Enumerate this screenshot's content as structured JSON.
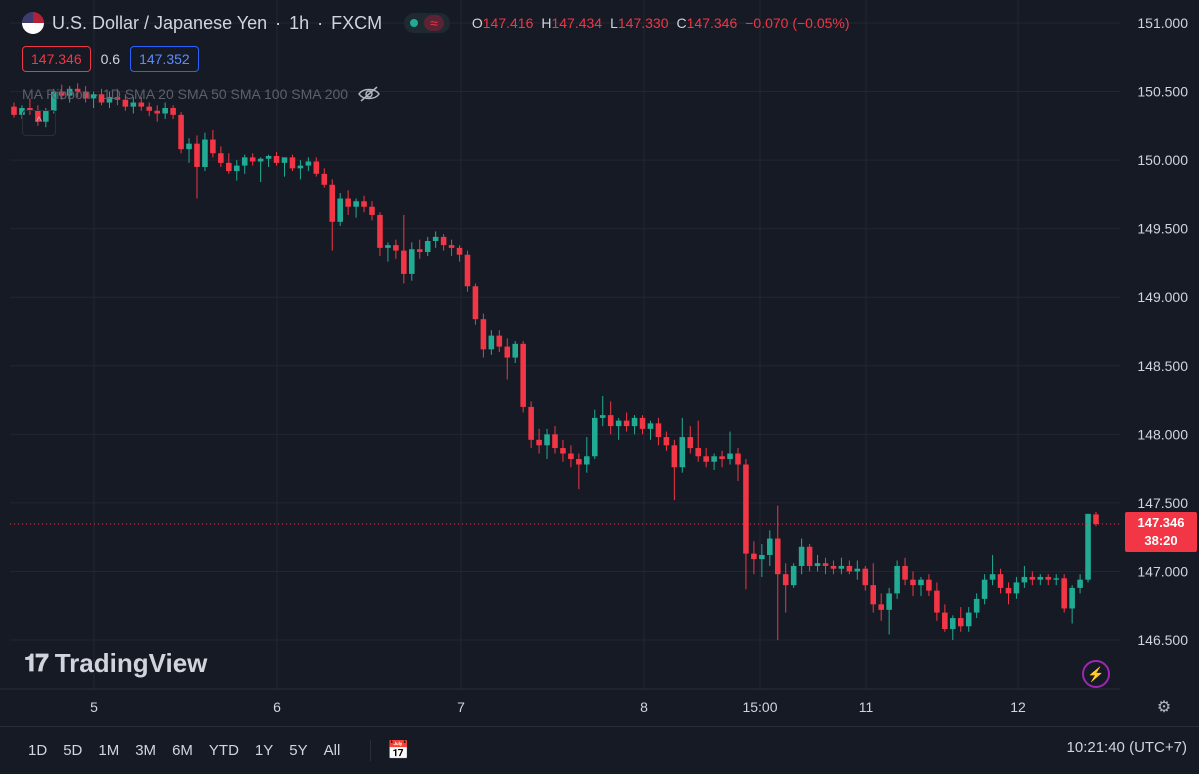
{
  "header": {
    "symbol": "U.S. Dollar / Japanese Yen",
    "sep1": "·",
    "interval": "1h",
    "sep2": "·",
    "source": "FXCM",
    "o_label": "O",
    "o": "147.416",
    "h_label": "H",
    "h": "147.434",
    "l_label": "L",
    "l": "147.330",
    "c_label": "C",
    "c": "147.346",
    "change": "−0.070 (−0.05%)"
  },
  "quote": {
    "bid": "147.346",
    "spread": "0.6",
    "ask": "147.352"
  },
  "indicator": {
    "label": "MA Ribbon · 1D SMA 20 SMA 50 SMA 100 SMA 200"
  },
  "price_axis": [
    "151.000",
    "150.500",
    "150.000",
    "149.500",
    "149.000",
    "148.500",
    "148.000",
    "147.500",
    "147.000",
    "146.500"
  ],
  "time_axis": [
    "5",
    "6",
    "7",
    "8",
    "15:00",
    "11",
    "12"
  ],
  "last_price": {
    "price": "147.346",
    "countdown": "38:20"
  },
  "brand": "TradingView",
  "range_buttons": [
    "1D",
    "5D",
    "1M",
    "3M",
    "6M",
    "YTD",
    "1Y",
    "5Y",
    "All"
  ],
  "clock": "10:21:40 (UTC+7)",
  "icons": {
    "flag": "us-jp-flag-icon",
    "eye": "eye-off-icon",
    "bolt": "lightning-icon",
    "gear": "settings-icon",
    "calendar": "calendar-range-icon"
  },
  "colors": {
    "up": "#22ab94",
    "down": "#f23645",
    "bg": "#161a25",
    "grid": "#232632"
  },
  "chart_data": {
    "type": "candlestick",
    "ylim": [
      146.3,
      151.1
    ],
    "yticks": [
      151.0,
      150.5,
      150.0,
      149.5,
      149.0,
      148.5,
      148.0,
      147.5,
      147.0,
      146.5
    ],
    "last_price": 147.346,
    "candles": [
      [
        150.39,
        150.42,
        150.31,
        150.33
      ],
      [
        150.33,
        150.4,
        150.3,
        150.38
      ],
      [
        150.38,
        150.45,
        150.33,
        150.36
      ],
      [
        150.36,
        150.4,
        150.25,
        150.28
      ],
      [
        150.28,
        150.38,
        150.24,
        150.36
      ],
      [
        150.36,
        150.52,
        150.34,
        150.5
      ],
      [
        150.5,
        150.55,
        150.44,
        150.47
      ],
      [
        150.47,
        150.54,
        150.42,
        150.52
      ],
      [
        150.52,
        150.56,
        150.46,
        150.5
      ],
      [
        150.5,
        150.54,
        150.42,
        150.45
      ],
      [
        150.45,
        150.5,
        150.38,
        150.48
      ],
      [
        150.48,
        150.52,
        150.4,
        150.42
      ],
      [
        150.42,
        150.5,
        150.38,
        150.46
      ],
      [
        150.46,
        150.52,
        150.4,
        150.44
      ],
      [
        150.44,
        150.48,
        150.36,
        150.39
      ],
      [
        150.39,
        150.46,
        150.34,
        150.42
      ],
      [
        150.42,
        150.46,
        150.36,
        150.39
      ],
      [
        150.39,
        150.42,
        150.32,
        150.36
      ],
      [
        150.36,
        150.4,
        150.28,
        150.34
      ],
      [
        150.34,
        150.42,
        150.3,
        150.38
      ],
      [
        150.38,
        150.4,
        150.3,
        150.33
      ],
      [
        150.33,
        150.35,
        150.05,
        150.08
      ],
      [
        150.08,
        150.16,
        149.98,
        150.12
      ],
      [
        150.12,
        150.18,
        149.72,
        149.95
      ],
      [
        149.95,
        150.2,
        149.92,
        150.15
      ],
      [
        150.15,
        150.22,
        150.02,
        150.05
      ],
      [
        150.05,
        150.1,
        149.95,
        149.98
      ],
      [
        149.98,
        150.05,
        149.9,
        149.92
      ],
      [
        149.92,
        150.0,
        149.85,
        149.96
      ],
      [
        149.96,
        150.04,
        149.9,
        150.02
      ],
      [
        150.02,
        150.05,
        149.96,
        149.99
      ],
      [
        149.99,
        150.02,
        149.84,
        150.01
      ],
      [
        150.01,
        150.04,
        149.95,
        150.03
      ],
      [
        150.03,
        150.06,
        149.96,
        149.98
      ],
      [
        149.98,
        150.02,
        149.88,
        150.02
      ],
      [
        150.02,
        150.04,
        149.92,
        149.94
      ],
      [
        149.94,
        150.0,
        149.86,
        149.96
      ],
      [
        149.96,
        150.02,
        149.92,
        149.99
      ],
      [
        149.99,
        150.02,
        149.88,
        149.9
      ],
      [
        149.9,
        149.94,
        149.8,
        149.82
      ],
      [
        149.82,
        149.86,
        149.34,
        149.55
      ],
      [
        149.55,
        149.76,
        149.52,
        149.72
      ],
      [
        149.72,
        149.78,
        149.6,
        149.66
      ],
      [
        149.66,
        149.72,
        149.58,
        149.7
      ],
      [
        149.7,
        149.74,
        149.62,
        149.66
      ],
      [
        149.66,
        149.7,
        149.56,
        149.6
      ],
      [
        149.6,
        149.62,
        149.3,
        149.36
      ],
      [
        149.36,
        149.4,
        149.26,
        149.38
      ],
      [
        149.38,
        149.42,
        149.28,
        149.34
      ],
      [
        149.34,
        149.6,
        149.1,
        149.17
      ],
      [
        149.17,
        149.4,
        149.12,
        149.35
      ],
      [
        149.35,
        149.42,
        149.28,
        149.33
      ],
      [
        149.33,
        149.44,
        149.3,
        149.41
      ],
      [
        149.41,
        149.48,
        149.36,
        149.44
      ],
      [
        149.44,
        149.46,
        149.34,
        149.38
      ],
      [
        149.38,
        149.42,
        149.3,
        149.36
      ],
      [
        149.36,
        149.38,
        149.26,
        149.31
      ],
      [
        149.31,
        149.34,
        149.04,
        149.08
      ],
      [
        149.08,
        149.1,
        148.8,
        148.84
      ],
      [
        148.84,
        148.88,
        148.56,
        148.62
      ],
      [
        148.62,
        148.76,
        148.58,
        148.72
      ],
      [
        148.72,
        148.76,
        148.6,
        148.64
      ],
      [
        148.64,
        148.7,
        148.4,
        148.56
      ],
      [
        148.56,
        148.68,
        148.52,
        148.66
      ],
      [
        148.66,
        148.68,
        148.16,
        148.2
      ],
      [
        148.2,
        148.24,
        147.9,
        147.96
      ],
      [
        147.96,
        148.04,
        147.86,
        147.92
      ],
      [
        147.92,
        148.04,
        147.82,
        148.0
      ],
      [
        148.0,
        148.06,
        147.86,
        147.9
      ],
      [
        147.9,
        147.96,
        147.8,
        147.86
      ],
      [
        147.86,
        147.92,
        147.76,
        147.82
      ],
      [
        147.82,
        147.86,
        147.6,
        147.78
      ],
      [
        147.78,
        147.98,
        147.72,
        147.84
      ],
      [
        147.84,
        148.18,
        147.82,
        148.12
      ],
      [
        148.12,
        148.28,
        148.06,
        148.14
      ],
      [
        148.14,
        148.24,
        148.0,
        148.06
      ],
      [
        148.06,
        148.12,
        147.96,
        148.1
      ],
      [
        148.1,
        148.16,
        148.02,
        148.06
      ],
      [
        148.06,
        148.14,
        148.0,
        148.12
      ],
      [
        148.12,
        148.14,
        148.0,
        148.04
      ],
      [
        148.04,
        148.1,
        147.96,
        148.08
      ],
      [
        148.08,
        148.12,
        147.92,
        147.98
      ],
      [
        147.98,
        148.02,
        147.88,
        147.92
      ],
      [
        147.92,
        147.96,
        147.52,
        147.76
      ],
      [
        147.76,
        148.12,
        147.72,
        147.98
      ],
      [
        147.98,
        148.06,
        147.86,
        147.9
      ],
      [
        147.9,
        148.1,
        147.8,
        147.84
      ],
      [
        147.84,
        147.9,
        147.76,
        147.8
      ],
      [
        147.8,
        147.86,
        147.74,
        147.84
      ],
      [
        147.84,
        147.88,
        147.76,
        147.82
      ],
      [
        147.82,
        148.02,
        147.78,
        147.86
      ],
      [
        147.86,
        147.9,
        147.66,
        147.78
      ],
      [
        147.78,
        147.82,
        146.87,
        147.13
      ],
      [
        147.13,
        147.22,
        146.98,
        147.09
      ],
      [
        147.09,
        147.2,
        146.96,
        147.12
      ],
      [
        147.12,
        147.3,
        147.04,
        147.24
      ],
      [
        147.24,
        147.48,
        146.5,
        146.98
      ],
      [
        146.98,
        147.06,
        146.7,
        146.9
      ],
      [
        146.9,
        147.06,
        146.88,
        147.04
      ],
      [
        147.04,
        147.24,
        146.98,
        147.18
      ],
      [
        147.18,
        147.2,
        147.0,
        147.04
      ],
      [
        147.04,
        147.12,
        147.0,
        147.06
      ],
      [
        147.06,
        147.1,
        146.98,
        147.04
      ],
      [
        147.04,
        147.08,
        146.98,
        147.02
      ],
      [
        147.02,
        147.1,
        146.98,
        147.04
      ],
      [
        147.04,
        147.08,
        146.98,
        147.0
      ],
      [
        147.0,
        147.08,
        146.94,
        147.02
      ],
      [
        147.02,
        147.04,
        146.86,
        146.9
      ],
      [
        146.9,
        147.06,
        146.7,
        146.76
      ],
      [
        146.76,
        146.84,
        146.64,
        146.72
      ],
      [
        146.72,
        146.88,
        146.54,
        146.84
      ],
      [
        146.84,
        147.08,
        146.8,
        147.04
      ],
      [
        147.04,
        147.1,
        146.9,
        146.94
      ],
      [
        146.94,
        147.0,
        146.82,
        146.9
      ],
      [
        146.9,
        146.96,
        146.82,
        146.94
      ],
      [
        146.94,
        146.98,
        146.82,
        146.86
      ],
      [
        146.86,
        146.92,
        146.64,
        146.7
      ],
      [
        146.7,
        146.76,
        146.56,
        146.58
      ],
      [
        146.58,
        146.68,
        146.5,
        146.66
      ],
      [
        146.66,
        146.74,
        146.56,
        146.6
      ],
      [
        146.6,
        146.74,
        146.56,
        146.7
      ],
      [
        146.7,
        146.84,
        146.66,
        146.8
      ],
      [
        146.8,
        146.98,
        146.76,
        146.94
      ],
      [
        146.94,
        147.12,
        146.9,
        146.98
      ],
      [
        146.98,
        147.02,
        146.84,
        146.88
      ],
      [
        146.88,
        146.92,
        146.76,
        146.84
      ],
      [
        146.84,
        146.96,
        146.8,
        146.92
      ],
      [
        146.92,
        147.04,
        146.88,
        146.96
      ],
      [
        146.96,
        147.0,
        146.9,
        146.94
      ],
      [
        146.94,
        146.98,
        146.9,
        146.96
      ],
      [
        146.96,
        146.98,
        146.9,
        146.94
      ],
      [
        146.94,
        146.98,
        146.9,
        146.95
      ],
      [
        146.95,
        146.98,
        146.7,
        146.73
      ],
      [
        146.73,
        146.9,
        146.62,
        146.88
      ],
      [
        146.88,
        146.98,
        146.84,
        146.94
      ],
      [
        146.94,
        147.42,
        146.92,
        147.42
      ],
      [
        147.416,
        147.434,
        147.33,
        147.346
      ]
    ]
  }
}
